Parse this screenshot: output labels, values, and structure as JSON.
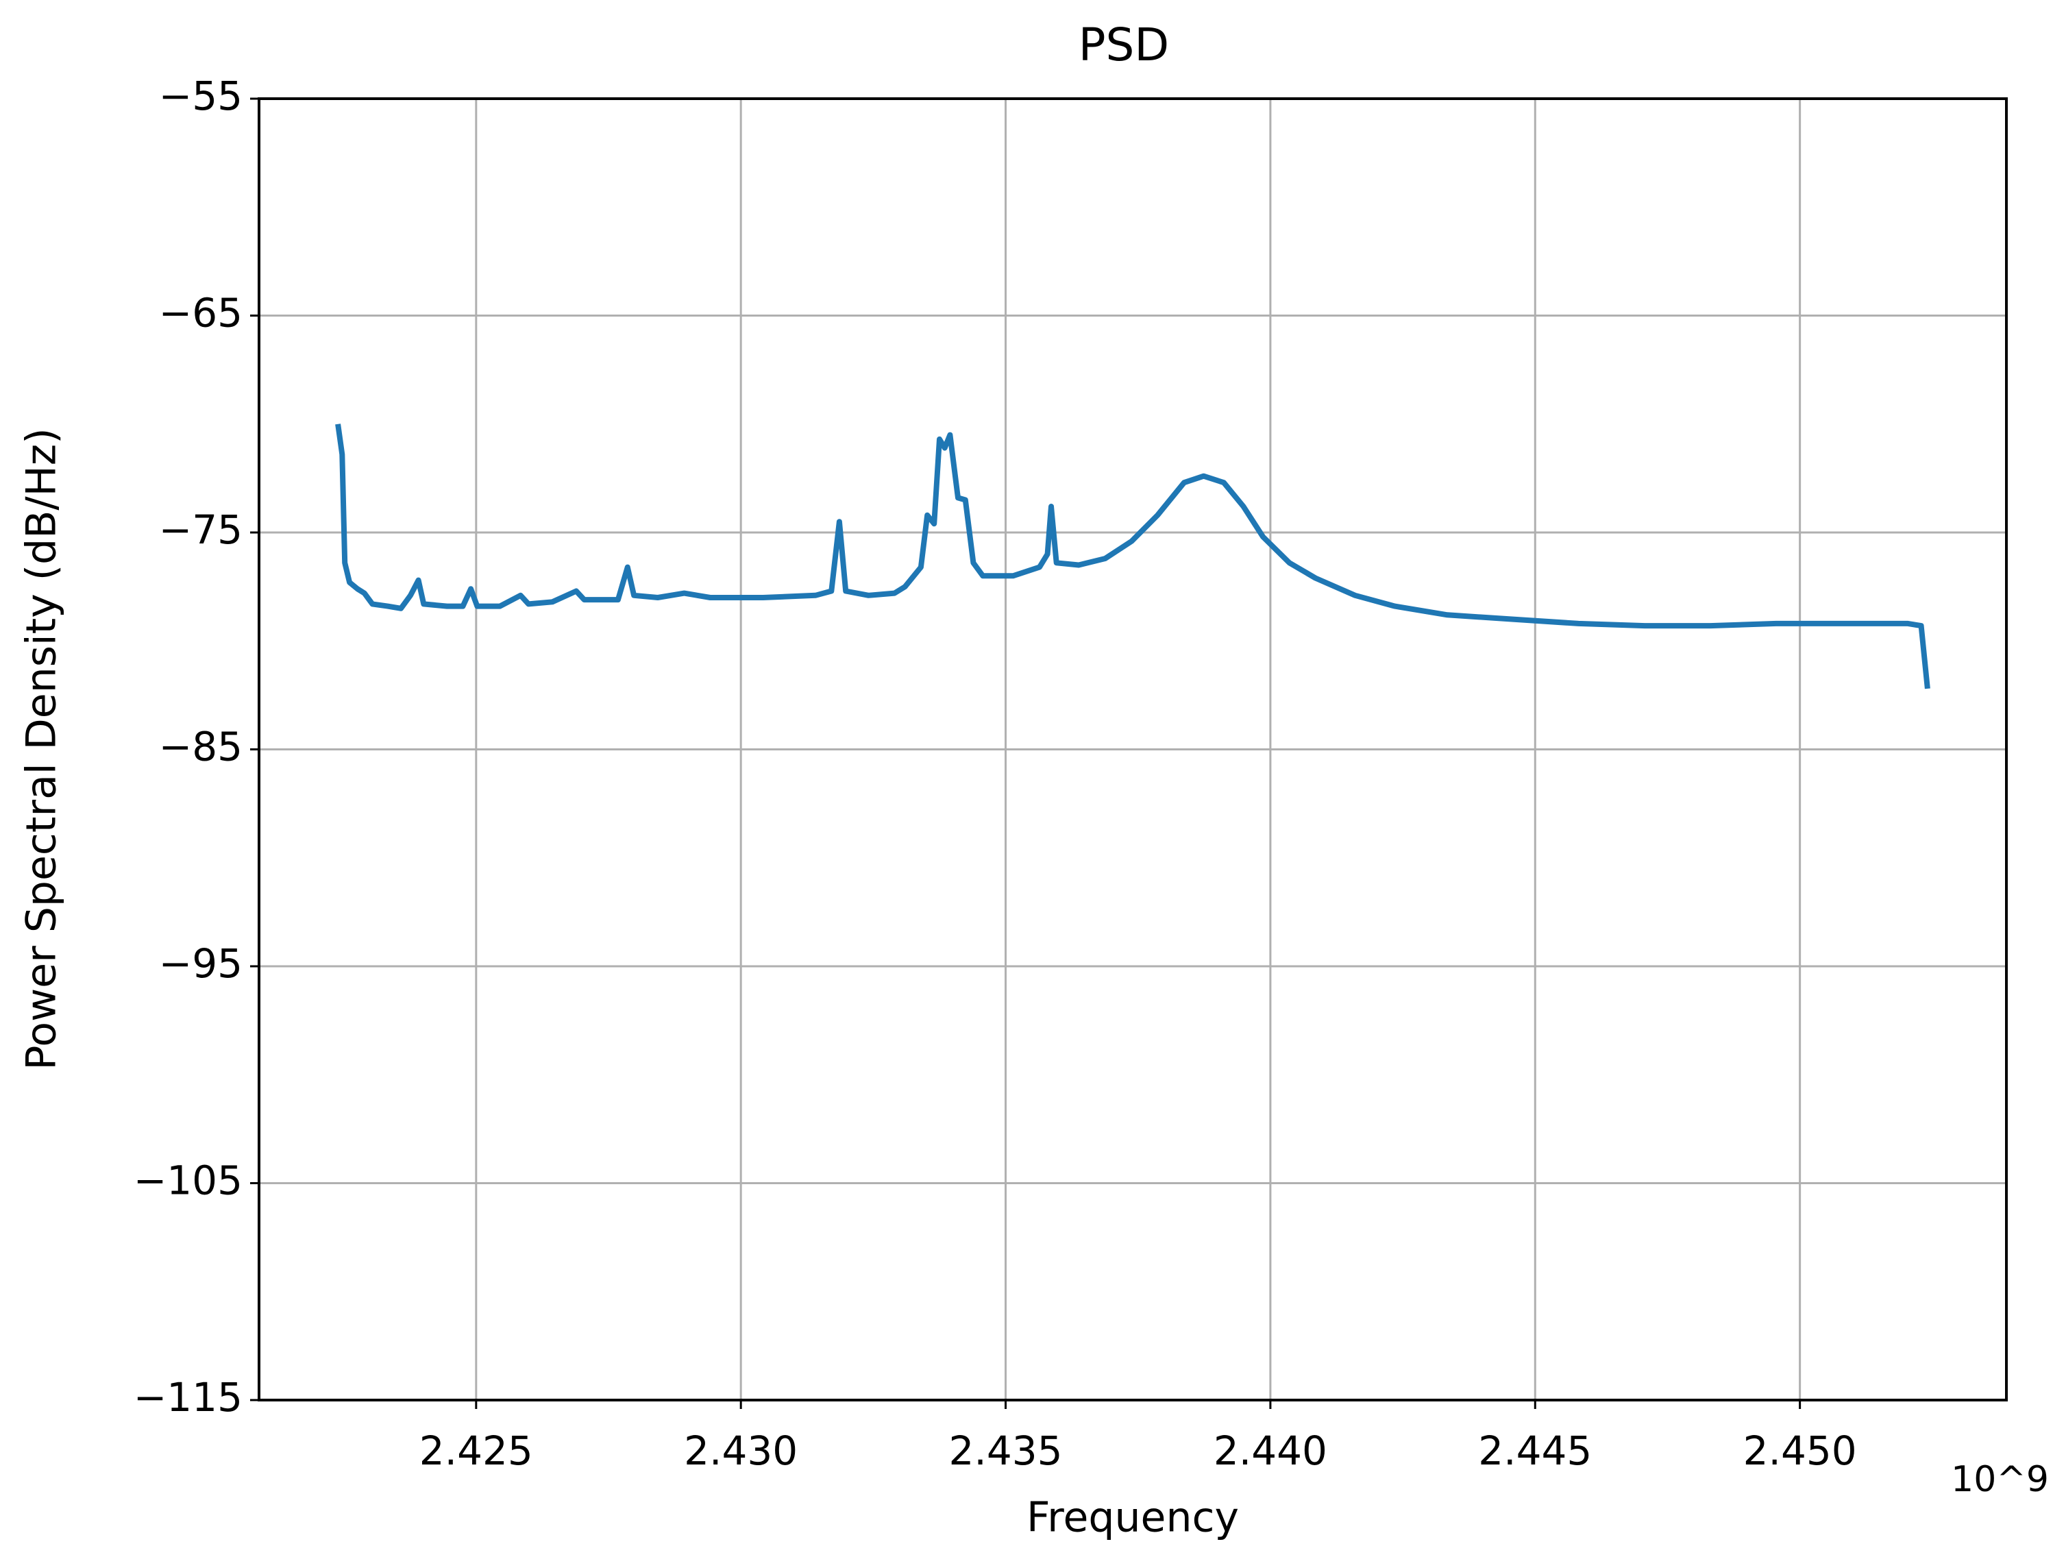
{
  "chart_data": {
    "type": "line",
    "title": "PSD",
    "x_label": "Frequency",
    "y_label": "Power Spectral Density (dB/Hz)",
    "x_offset_label": "10^9",
    "xlim": [
      2.4209,
      2.4539
    ],
    "ylim": [
      -115,
      -55
    ],
    "xticks": [
      2.425,
      {
        "value": 2.43,
        "label": "2.430"
      },
      2.435,
      {
        "value": 2.44,
        "label": "2.440"
      },
      2.445,
      {
        "value": 2.45,
        "label": "2.450"
      }
    ],
    "yticks": [
      {
        "value": -115,
        "label": "−115"
      },
      {
        "value": -105,
        "label": "−105"
      },
      {
        "value": -95,
        "label": "−95"
      },
      {
        "value": -85,
        "label": "−85"
      },
      {
        "value": -75,
        "label": "−75"
      },
      {
        "value": -65,
        "label": "−65"
      },
      {
        "value": -55,
        "label": "−55"
      }
    ],
    "grid": true,
    "series": [
      {
        "color": "#1f77b4",
        "x": [
          2.42239,
          2.42247,
          2.42252,
          2.42261,
          2.42276,
          2.42289,
          2.42304,
          2.42333,
          2.42358,
          2.42376,
          2.42391,
          2.42401,
          2.42445,
          2.42475,
          2.4249,
          2.42502,
          2.42545,
          2.42584,
          2.42599,
          2.42644,
          2.42689,
          2.42704,
          2.42768,
          2.42786,
          2.42798,
          2.42843,
          2.42893,
          2.42942,
          2.43042,
          2.43141,
          2.43171,
          2.43186,
          2.43198,
          2.43241,
          2.4329,
          2.4331,
          2.4334,
          2.43352,
          2.43365,
          2.43375,
          2.43385,
          2.43395,
          2.4341,
          2.43424,
          2.43439,
          2.43457,
          2.43514,
          2.43564,
          2.43579,
          2.43586,
          2.43596,
          2.43638,
          2.43688,
          2.43738,
          2.43787,
          2.43837,
          2.43874,
          2.43912,
          2.43949,
          2.43986,
          2.44036,
          2.44085,
          2.4416,
          2.44235,
          2.44334,
          2.44458,
          2.44582,
          2.44707,
          2.44831,
          2.44955,
          2.4508,
          2.45204,
          2.45229,
          2.45241
        ],
        "values": [
          -70.0,
          -71.4,
          -76.4,
          -77.3,
          -77.6,
          -77.8,
          -78.3,
          -78.4,
          -78.5,
          -77.9,
          -77.2,
          -78.3,
          -78.4,
          -78.4,
          -77.6,
          -78.4,
          -78.4,
          -77.9,
          -78.3,
          -78.2,
          -77.7,
          -78.1,
          -78.1,
          -76.6,
          -77.9,
          -78.0,
          -77.8,
          -78.0,
          -78.0,
          -77.9,
          -77.7,
          -74.5,
          -77.7,
          -77.9,
          -77.8,
          -77.5,
          -76.6,
          -74.2,
          -74.6,
          -70.7,
          -71.1,
          -70.5,
          -73.4,
          -73.5,
          -76.4,
          -77.0,
          -77.0,
          -76.6,
          -76.0,
          -73.8,
          -76.4,
          -76.5,
          -76.2,
          -75.4,
          -74.2,
          -72.7,
          -72.4,
          -72.7,
          -73.8,
          -75.2,
          -76.4,
          -77.1,
          -77.9,
          -78.4,
          -78.8,
          -79.0,
          -79.2,
          -79.3,
          -79.3,
          -79.2,
          -79.2,
          -79.2,
          -79.3,
          -82.2
        ]
      }
    ]
  }
}
